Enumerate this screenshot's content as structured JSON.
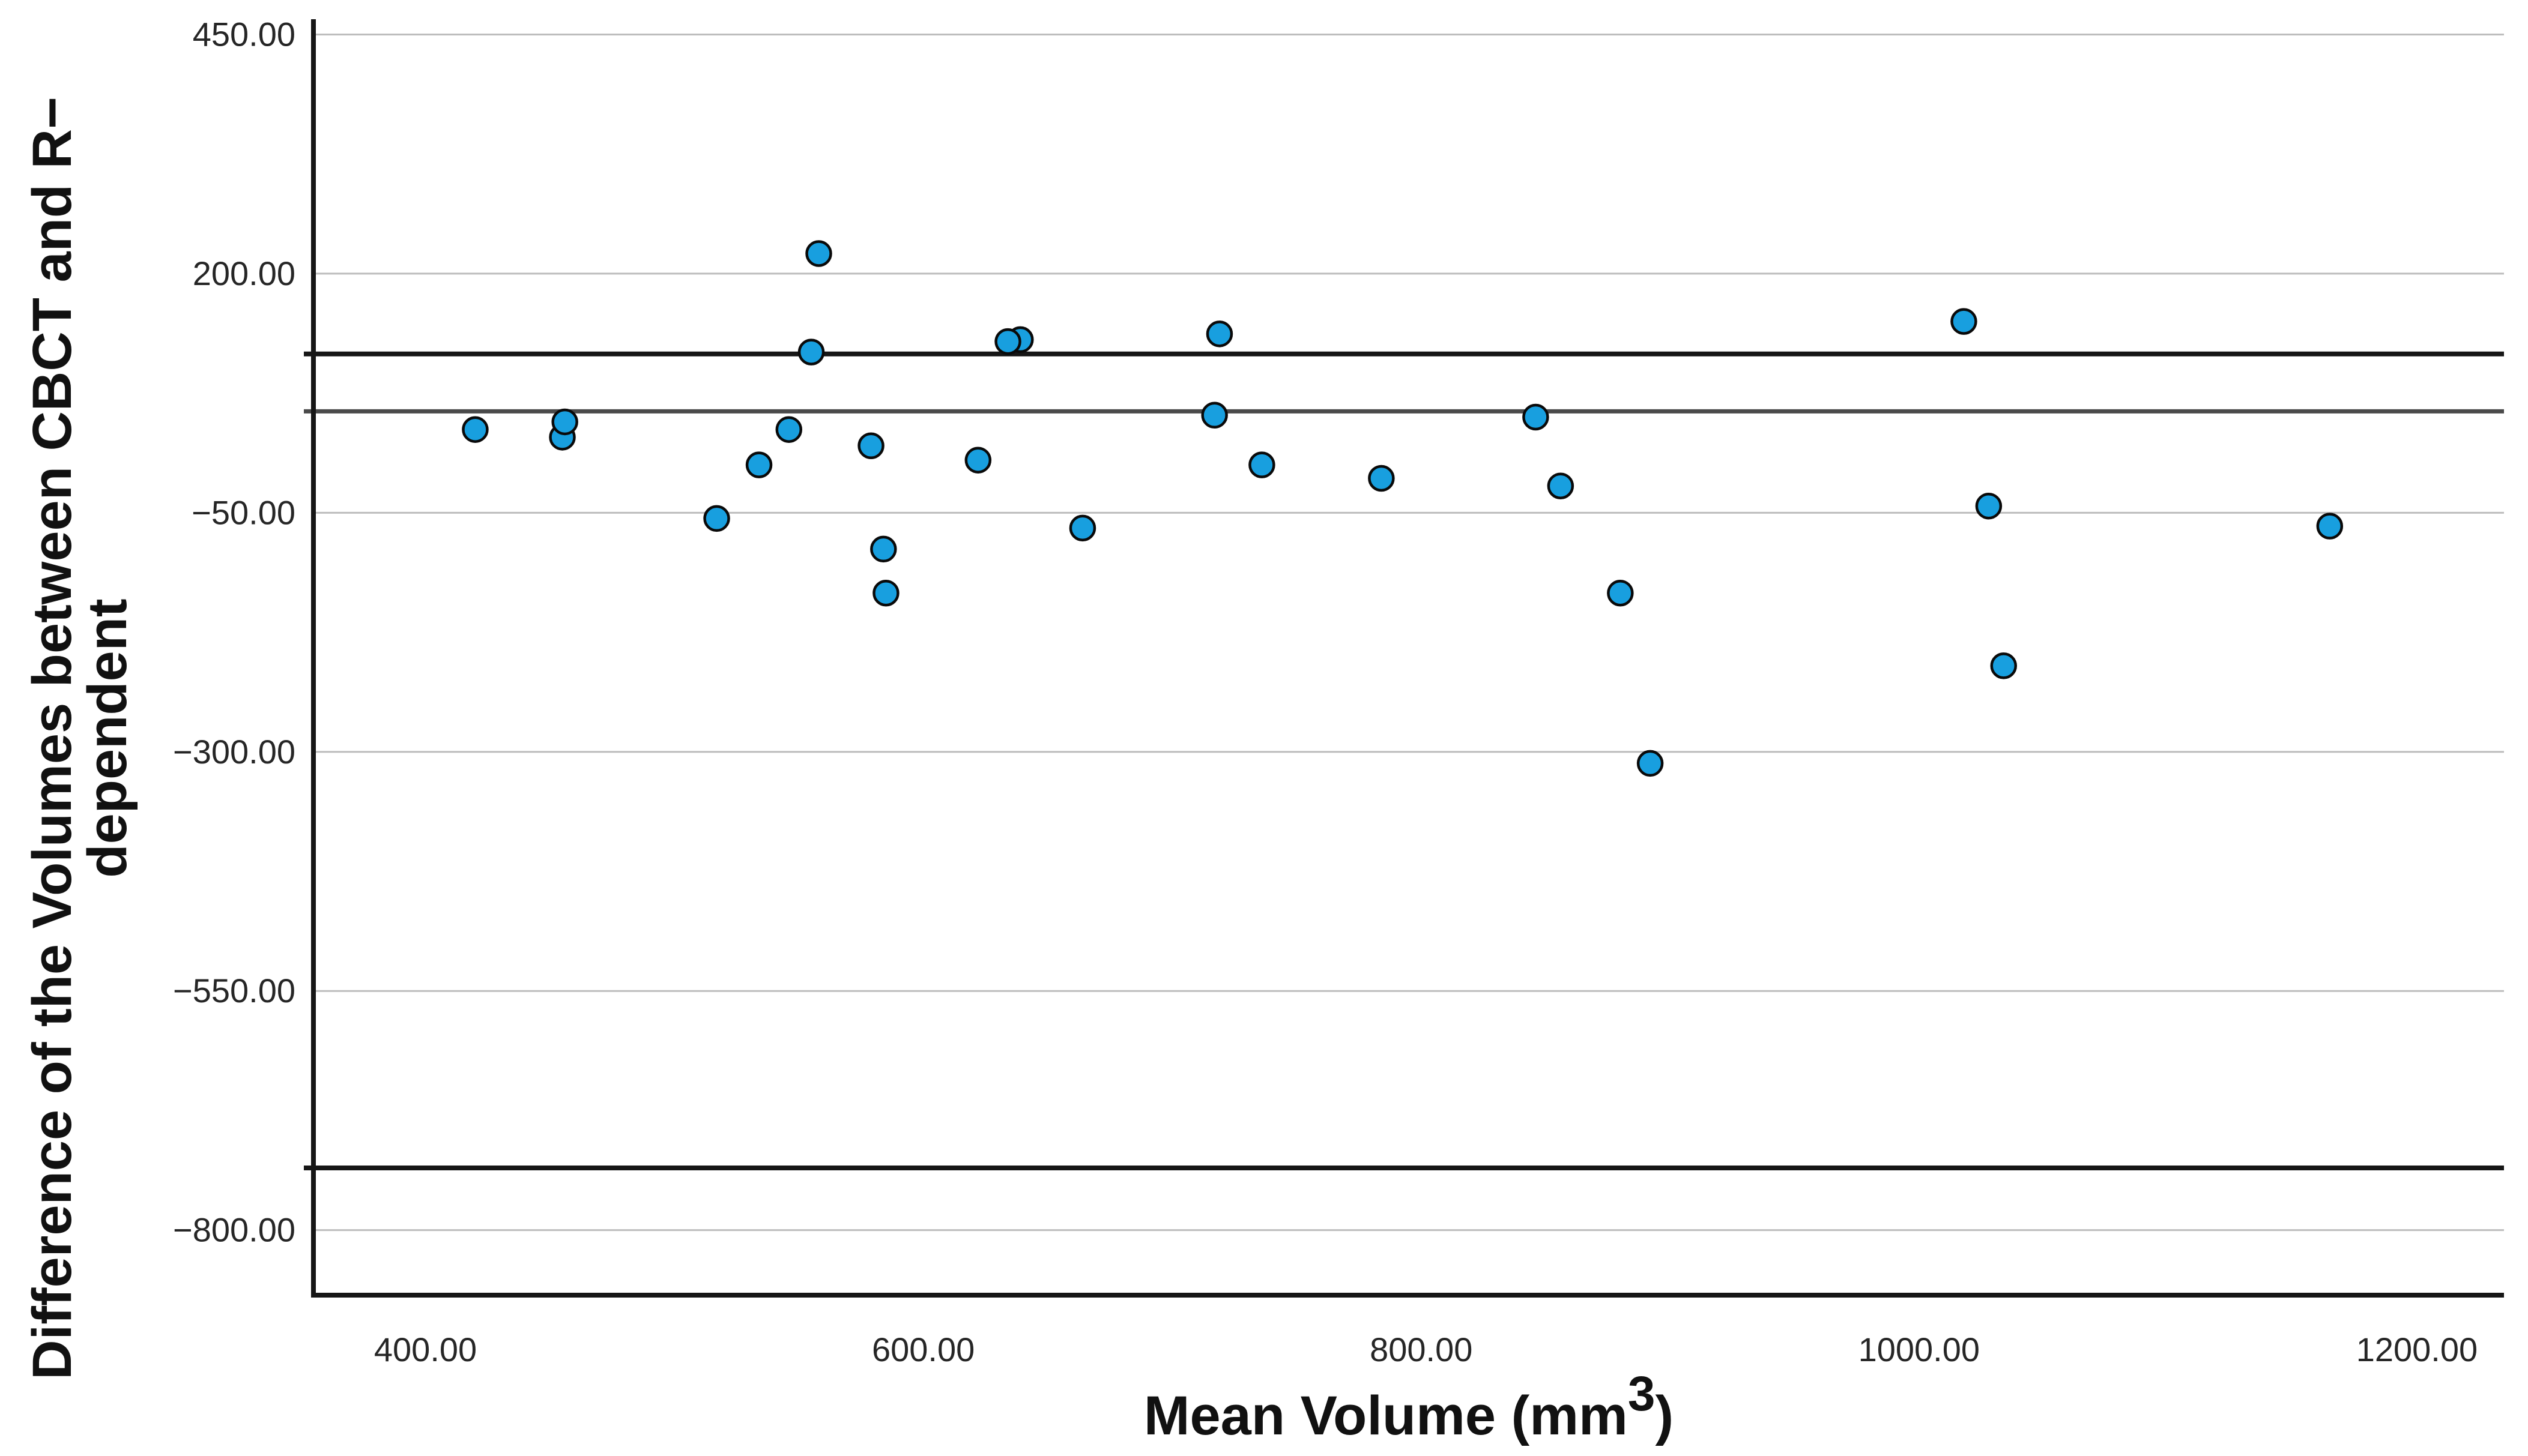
{
  "chart_data": {
    "type": "scatter",
    "title": "",
    "xlabel_parts": [
      "Mean Volume (mm",
      "3",
      ")"
    ],
    "ylabel_line1": "Difference of the Volumes between CBCT and R−",
    "ylabel_line2": "dependent",
    "xlim": [
      355,
      1235
    ],
    "ylim": [
      -868,
      466
    ],
    "grid": true,
    "legend": "none",
    "x_ticks": [
      {
        "value": 400,
        "label": "400.00"
      },
      {
        "value": 600,
        "label": "600.00"
      },
      {
        "value": 800,
        "label": "800.00"
      },
      {
        "value": 1000,
        "label": "1000.00"
      },
      {
        "value": 1200,
        "label": "1200.00"
      }
    ],
    "y_ticks": [
      {
        "value": 450,
        "label": "450.00"
      },
      {
        "value": 200,
        "label": "200.00"
      },
      {
        "value": -50,
        "label": "−50.00"
      },
      {
        "value": -300,
        "label": "−300.00"
      },
      {
        "value": -550,
        "label": "−550.00"
      },
      {
        "value": -800,
        "label": "−800.00"
      }
    ],
    "reference_lines": [
      {
        "name": "upper-limit-line",
        "value": 116,
        "color": "#161616",
        "width": 8
      },
      {
        "name": "mean-line",
        "value": 56,
        "color": "#4a4a4a",
        "width": 7
      },
      {
        "name": "lower-limit-line",
        "value": -735,
        "color": "#161616",
        "width": 8
      }
    ],
    "points": [
      [
        420,
        37
      ],
      [
        455,
        29
      ],
      [
        456,
        45
      ],
      [
        517,
        -56
      ],
      [
        534,
        0
      ],
      [
        546,
        37
      ],
      [
        555,
        118
      ],
      [
        558,
        221
      ],
      [
        579,
        20
      ],
      [
        584,
        -88
      ],
      [
        585,
        -134
      ],
      [
        622,
        5
      ],
      [
        639,
        131
      ],
      [
        634,
        129
      ],
      [
        664,
        -66
      ],
      [
        717,
        52
      ],
      [
        719,
        137
      ],
      [
        736,
        0
      ],
      [
        784,
        -14
      ],
      [
        846,
        50
      ],
      [
        856,
        -22
      ],
      [
        880,
        -134
      ],
      [
        892,
        -312
      ],
      [
        1018,
        150
      ],
      [
        1028,
        -43
      ],
      [
        1034,
        -210
      ],
      [
        1165,
        -64
      ]
    ],
    "colors": {
      "background": "#ffffff",
      "marker_fill": "#189fdf",
      "marker_stroke": "#0a0a0a",
      "gridline": "#bdbdbd",
      "axis_frame": "#161616",
      "text": "#262626"
    }
  }
}
